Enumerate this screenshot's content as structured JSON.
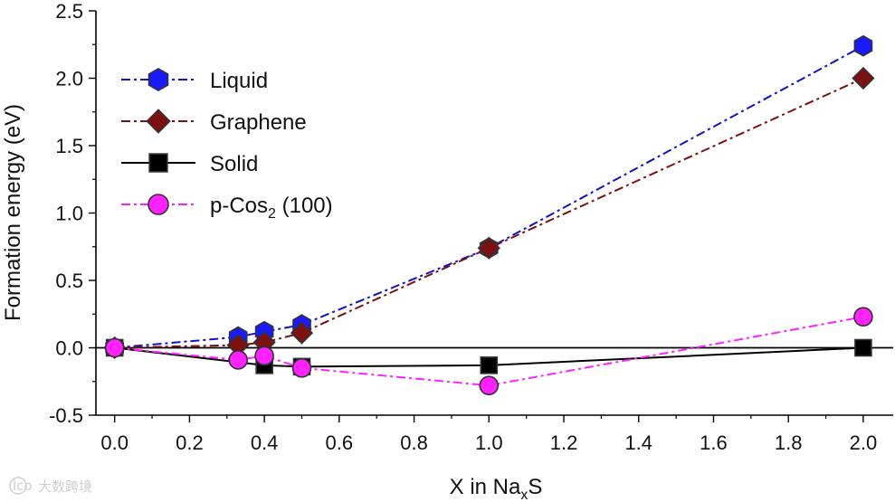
{
  "chart_data": {
    "type": "line",
    "title": "",
    "xlabel": "X in Na",
    "xlabel_sub": "x",
    "xlabel_tail": "S",
    "ylabel": "Formation energy (eV)",
    "xlim": [
      -0.05,
      2.08
    ],
    "ylim": [
      -0.5,
      2.5
    ],
    "xticks": [
      "0.0",
      "0.2",
      "0.4",
      "0.6",
      "0.8",
      "1.0",
      "1.2",
      "1.4",
      "1.6",
      "1.8",
      "2.0"
    ],
    "yticks": [
      "-0.5",
      "0.0",
      "0.5",
      "1.0",
      "1.5",
      "2.0",
      "2.5"
    ],
    "zero_line": true,
    "legend_position": "top-left",
    "series": [
      {
        "name": "Liquid",
        "color": "#1111c8",
        "marker": "hexagon",
        "marker_fill": "#1a1aff",
        "dash": "10,4,3,4",
        "x": [
          0.0,
          0.33,
          0.4,
          0.5,
          1.0,
          2.0
        ],
        "y": [
          0.0,
          0.08,
          0.12,
          0.17,
          0.74,
          2.24
        ]
      },
      {
        "name": "Graphene",
        "color": "#7a1010",
        "marker": "diamond",
        "marker_fill": "#7d1111",
        "dash": "10,4,3,4",
        "x": [
          0.0,
          0.33,
          0.4,
          0.5,
          1.0,
          2.0
        ],
        "y": [
          0.0,
          0.02,
          0.04,
          0.11,
          0.74,
          2.0
        ]
      },
      {
        "name": "Solid",
        "color": "#000000",
        "marker": "square",
        "marker_fill": "#000000",
        "dash": "",
        "x": [
          0.0,
          0.4,
          0.5,
          1.0,
          2.0
        ],
        "y": [
          0.0,
          -0.13,
          -0.14,
          -0.13,
          0.0
        ]
      },
      {
        "name": "p-Cos",
        "name_sub": "2",
        "name_tail": " (100)",
        "color": "#ff22ff",
        "marker": "circle",
        "marker_fill": "#ff22ff",
        "dash": "10,4,3,4",
        "x": [
          0.0,
          0.33,
          0.4,
          0.5,
          1.0,
          2.0
        ],
        "y": [
          0.0,
          -0.09,
          -0.06,
          -0.15,
          -0.28,
          0.23
        ]
      }
    ]
  },
  "watermark": {
    "text": "大数跨境",
    "badge": "lco"
  }
}
